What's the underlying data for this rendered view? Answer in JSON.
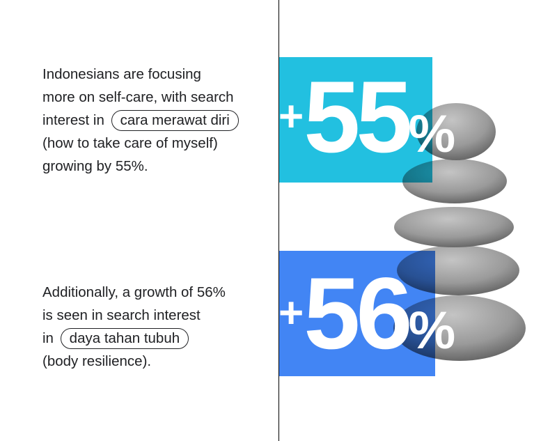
{
  "block1": {
    "lines": [
      "Indonesians are focusing",
      "more on self-care, with search",
      "interest in",
      "(how to take care of myself)",
      "growing by 55%."
    ],
    "keyword": "cara merawat diri"
  },
  "block2": {
    "lines": [
      "Additionally, a growth of 56%",
      "is seen in search interest",
      "in",
      "(body resilience)."
    ],
    "keyword": "daya tahan tubuh"
  },
  "stat1": {
    "plus": "+",
    "value": "55",
    "percent": "%",
    "color": "#22c0e0"
  },
  "stat2": {
    "plus": "+",
    "value": "56",
    "percent": "%",
    "color": "#4285f4"
  }
}
